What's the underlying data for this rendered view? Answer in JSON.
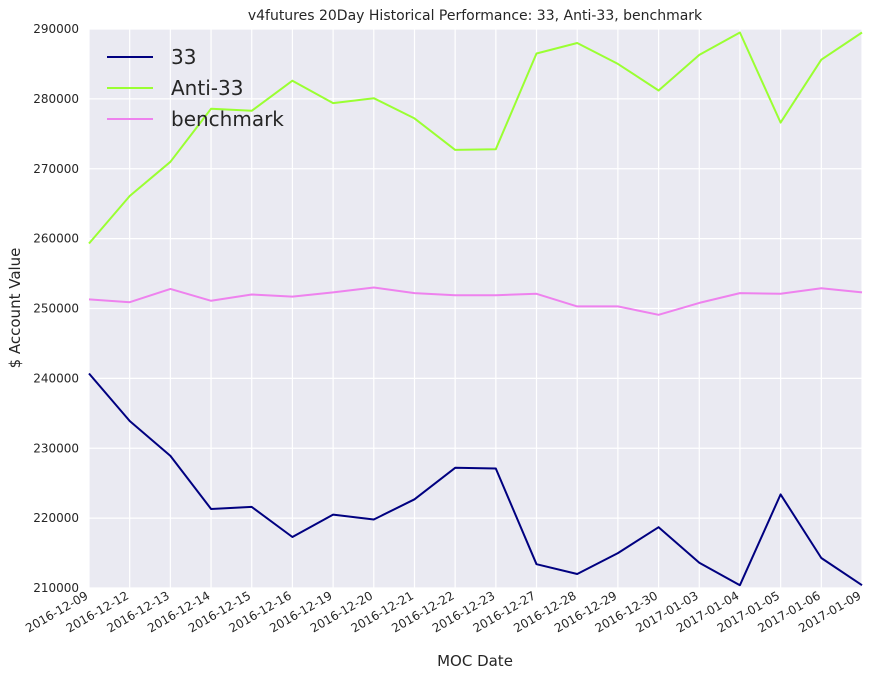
{
  "chart_data": {
    "type": "line",
    "title": "v4futures 20Day Historical Performance: 33, Anti-33, benchmark",
    "xlabel": "MOC Date",
    "ylabel": "$ Account Value",
    "x": [
      "2016-12-09",
      "2016-12-12",
      "2016-12-13",
      "2016-12-14",
      "2016-12-15",
      "2016-12-16",
      "2016-12-19",
      "2016-12-20",
      "2016-12-21",
      "2016-12-22",
      "2016-12-23",
      "2016-12-27",
      "2016-12-28",
      "2016-12-29",
      "2016-12-30",
      "2017-01-03",
      "2017-01-04",
      "2017-01-05",
      "2017-01-06",
      "2017-01-09"
    ],
    "ylim": [
      210000,
      290000
    ],
    "yticks": [
      210000,
      220000,
      230000,
      240000,
      250000,
      260000,
      270000,
      280000,
      290000
    ],
    "ytick_labels": [
      "210000",
      "220000",
      "230000",
      "240000",
      "250000",
      "260000",
      "270000",
      "280000",
      "290000"
    ],
    "grid": true,
    "legend_position": "top-left",
    "series": [
      {
        "name": "33",
        "color": "#000080",
        "values": [
          240700,
          233900,
          228900,
          221300,
          221600,
          217300,
          220500,
          219800,
          222700,
          227200,
          227100,
          213400,
          212000,
          215000,
          218700,
          213600,
          210400,
          223400,
          214300,
          210400
        ]
      },
      {
        "name": "Anti-33",
        "color": "#9AFF32",
        "values": [
          259300,
          266100,
          271000,
          278600,
          278300,
          282600,
          279400,
          280100,
          277200,
          272700,
          272800,
          286500,
          288000,
          285000,
          281200,
          286300,
          289500,
          276600,
          285600,
          289500
        ]
      },
      {
        "name": "benchmark",
        "color": "#EE82EE",
        "values": [
          251300,
          250900,
          252800,
          251100,
          252000,
          251700,
          252300,
          253000,
          252200,
          251900,
          251900,
          252100,
          250300,
          250300,
          249100,
          250800,
          252200,
          252100,
          252900,
          252300
        ]
      }
    ]
  }
}
